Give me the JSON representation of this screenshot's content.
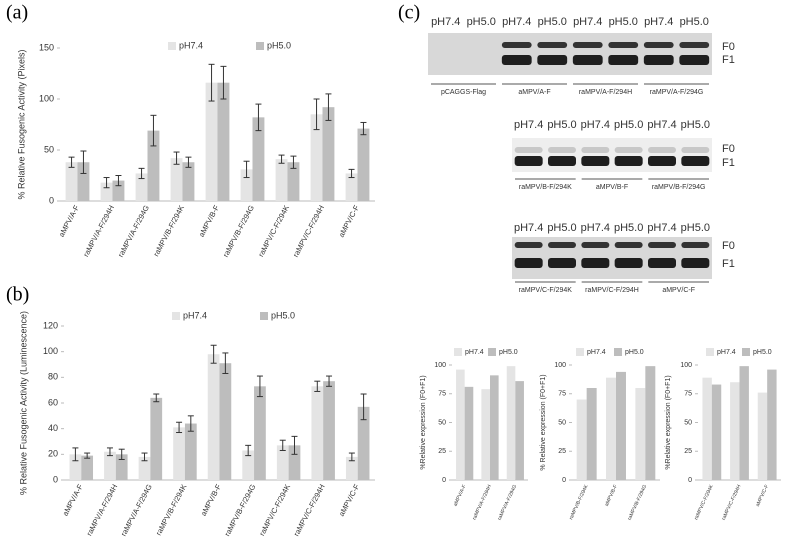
{
  "panel_labels": [
    "(a)",
    "(b)",
    "(c)"
  ],
  "chart_data": [
    {
      "type": "bar",
      "y_label": "% Relative Fusogenic Activity (Pixels)",
      "categories": [
        "aMPV/A-F",
        "raMPV/A-F/294H",
        "raMPV/A-F/294G",
        "raMPV/B-F/294K",
        "aMPV/B-F",
        "raMPV/B-F/294G",
        "raMPV/C-F/294K",
        "raMPV/C-F/294H",
        "aMPV/C-F"
      ],
      "series": [
        {
          "name": "pH7.4",
          "color": "#e4e4e4",
          "values": [
            38,
            18,
            27,
            42,
            116,
            31,
            41,
            85,
            27
          ],
          "errors": [
            5,
            5,
            5,
            6,
            18,
            8,
            4,
            15,
            4
          ]
        },
        {
          "name": "pH5.0",
          "color": "#bdbdbd",
          "values": [
            38,
            20,
            69,
            38,
            116,
            82,
            38,
            92,
            71
          ],
          "errors": [
            11,
            5,
            15,
            5,
            16,
            13,
            6,
            13,
            6
          ]
        }
      ],
      "ylim": [
        0,
        150
      ],
      "yticks": [
        0,
        50,
        100,
        150
      ],
      "grid": false
    },
    {
      "type": "bar",
      "y_label": "% Relative Fusogenic Activity (Luminescence)",
      "categories": [
        "aMPV/A-F",
        "raMPV/A-F/294H",
        "raMPV/A-F/294G",
        "raMPV/B-F/294K",
        "aMPV/B-F",
        "raMPV/B-F/294G",
        "raMPV/C-F/294K",
        "raMPV/C-F/294H",
        "aMPV/C-F"
      ],
      "series": [
        {
          "name": "pH7.4",
          "color": "#e4e4e4",
          "values": [
            20,
            22,
            18,
            41,
            98,
            23,
            27,
            73,
            18
          ],
          "errors": [
            5,
            3,
            3,
            4,
            7,
            4,
            4,
            4,
            3
          ]
        },
        {
          "name": "pH5.0",
          "color": "#bdbdbd",
          "values": [
            19,
            20,
            64,
            44,
            91,
            73,
            27,
            77,
            57
          ],
          "errors": [
            2,
            4,
            3,
            6,
            8,
            8,
            7,
            4,
            10
          ]
        }
      ],
      "ylim": [
        0,
        120
      ],
      "yticks": [
        0,
        20,
        40,
        60,
        80,
        100,
        120
      ],
      "grid": false
    },
    {
      "type": "bar",
      "y_label": "%Relative expression (F0+F1)",
      "categories": [
        "aMPV/A-F",
        "raMPV/A-F/294H",
        "raMPV/A-F/294G"
      ],
      "series": [
        {
          "name": "pH7.4",
          "color": "#e4e4e4",
          "values": [
            96,
            79,
            99
          ]
        },
        {
          "name": "pH5.0",
          "color": "#bdbdbd",
          "values": [
            81,
            91,
            86
          ]
        }
      ],
      "ylim": [
        0,
        100
      ],
      "yticks": [
        0,
        25,
        50,
        75,
        100
      ],
      "grid": false
    },
    {
      "type": "bar",
      "y_label": "% Relative expression (F0+F1)",
      "categories": [
        "raMPV/B-F/294K",
        "aMPV/B-F",
        "raMPV/B-F/294G"
      ],
      "series": [
        {
          "name": "pH7.4",
          "color": "#e4e4e4",
          "values": [
            70,
            89,
            80
          ]
        },
        {
          "name": "pH5.0",
          "color": "#bdbdbd",
          "values": [
            80,
            94,
            99
          ]
        }
      ],
      "ylim": [
        0,
        100
      ],
      "yticks": [
        0,
        25,
        50,
        75,
        100
      ],
      "grid": false
    },
    {
      "type": "bar",
      "y_label": "%Relative expression (F0+F1)",
      "categories": [
        "raMPV/C-F/294K",
        "raMPV/C-F/294H",
        "aMPV/C-F"
      ],
      "series": [
        {
          "name": "pH7.4",
          "color": "#e4e4e4",
          "values": [
            89,
            85,
            76
          ]
        },
        {
          "name": "pH5.0",
          "color": "#bdbdbd",
          "values": [
            83,
            99,
            96
          ]
        }
      ],
      "ylim": [
        0,
        100
      ],
      "yticks": [
        0,
        25,
        50,
        75,
        100
      ],
      "grid": false
    }
  ],
  "blots": [
    {
      "ph_labels": [
        "pH7.4",
        "pH5.0",
        "pH7.4",
        "pH5.0",
        "pH7.4",
        "pH5.0",
        "pH7.4",
        "pH5.0"
      ],
      "lanes": [
        "pCAGGS-Flag",
        "aMPV/A-F",
        "raMPV/A-F/294H",
        "raMPV/A-F/294G"
      ],
      "bands": [
        "F0",
        "F1"
      ]
    },
    {
      "ph_labels": [
        "pH7.4",
        "pH5.0",
        "pH7.4",
        "pH5.0",
        "pH7.4",
        "pH5.0"
      ],
      "lanes": [
        "raMPV/B-F/294K",
        "aMPV/B-F",
        "raMPV/B-F/294G"
      ],
      "bands": [
        "F0",
        "F1"
      ]
    },
    {
      "ph_labels": [
        "pH7.4",
        "pH5.0",
        "pH7.4",
        "pH5.0",
        "pH7.4",
        "pH5.0"
      ],
      "lanes": [
        "raMPV/C-F/294K",
        "raMPV/C-F/294H",
        "aMPV/C-F"
      ],
      "bands": [
        "F0",
        "F1"
      ]
    }
  ]
}
